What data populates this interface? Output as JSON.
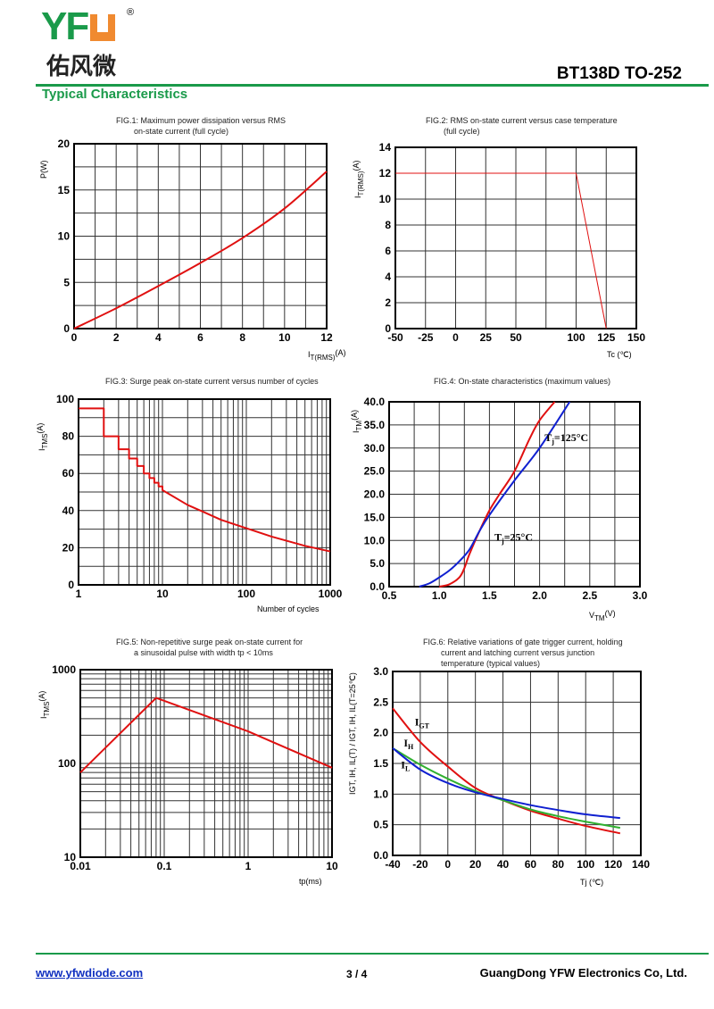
{
  "header": {
    "logo_text": "YFW",
    "logo_cn": "佑风微",
    "logo_mark": "®",
    "part_number": "BT138D TO-252",
    "section_title": "Typical Characteristics"
  },
  "colors": {
    "brand_green": "#1a9a4a",
    "brand_orange": "#f08a30",
    "red": "#e01010",
    "blue": "#1020d0",
    "green": "#30b030"
  },
  "footer": {
    "url": "www.yfwdiode.com",
    "page": "3 / 4",
    "company": "GuangDong YFW Electronics Co, Ltd."
  },
  "chart_data": [
    {
      "id": "fig1",
      "type": "line",
      "title": "FIG.1: Maximum power dissipation versus RMS\n        on-state current (full cycle)",
      "xlabel": {
        "main": "I",
        "sub": "T(RMS)",
        "unit": "(A)"
      },
      "ylabel": {
        "main": "P(W)",
        "sub": "",
        "unit": ""
      },
      "xscale": "linear",
      "yscale": "linear",
      "xlim": [
        0,
        12
      ],
      "ylim": [
        0,
        20
      ],
      "xticks": [
        0,
        2,
        4,
        6,
        8,
        10,
        12
      ],
      "yticks": [
        0,
        5,
        10,
        15,
        20
      ],
      "xgrid": [
        1,
        2,
        3,
        4,
        5,
        6,
        7,
        8,
        9,
        10,
        11
      ],
      "ygrid": [
        2.5,
        5,
        7.5,
        10,
        12.5,
        15,
        17.5
      ],
      "grid": true,
      "series": [
        {
          "color": "#e01010",
          "width": 2,
          "x": [
            0,
            2,
            4,
            6,
            8,
            10,
            12
          ],
          "y": [
            0,
            2.2,
            4.6,
            7.1,
            9.8,
            13,
            17
          ]
        }
      ]
    },
    {
      "id": "fig2",
      "type": "line",
      "title": "FIG.2: RMS on-state current versus case temperature\n        (full cycle)",
      "xlabel": {
        "main": "Tc (",
        "sub": "",
        "unit": "℃)"
      },
      "ylabel": {
        "main": "I",
        "sub": "T(RMS)",
        "unit": "(A)"
      },
      "xscale": "linear",
      "yscale": "linear",
      "xlim": [
        -50,
        150
      ],
      "ylim": [
        0,
        14
      ],
      "xticks": [
        -50,
        -25,
        0,
        25,
        50,
        100,
        125,
        150
      ],
      "yticks": [
        0,
        2,
        4,
        6,
        8,
        10,
        12,
        14
      ],
      "xgrid": [
        -25,
        0,
        25,
        50,
        75,
        100,
        125
      ],
      "ygrid": [
        2,
        4,
        6,
        8,
        10,
        12
      ],
      "grid": true,
      "series": [
        {
          "color": "#e01010",
          "width": 1,
          "x": [
            -50,
            100,
            125
          ],
          "y": [
            12,
            12,
            0
          ]
        }
      ]
    },
    {
      "id": "fig3",
      "type": "line",
      "title": "FIG.3: Surge peak on-state current versus number of cycles",
      "xlabel": {
        "main": "Number of cycles",
        "sub": "",
        "unit": ""
      },
      "ylabel": {
        "main": "I",
        "sub": "TMS",
        "unit": "(A)"
      },
      "xscale": "log",
      "yscale": "linear",
      "xlim": [
        1,
        1000
      ],
      "ylim": [
        0,
        100
      ],
      "xticks": [
        1,
        10,
        100,
        1000
      ],
      "yticks": [
        0,
        20,
        40,
        60,
        80,
        100
      ],
      "ygrid": [
        10,
        20,
        30,
        40,
        50,
        60,
        70,
        80,
        90
      ],
      "grid": true,
      "series": [
        {
          "color": "#e01010",
          "width": 2,
          "x": [
            1,
            2,
            2,
            3,
            3,
            4,
            4,
            5,
            5,
            6,
            6,
            7,
            7,
            8,
            8,
            9,
            9,
            10,
            10,
            20,
            30,
            50,
            100,
            200,
            500,
            1000
          ],
          "y": [
            95,
            95,
            80,
            80,
            73,
            73,
            68,
            68,
            64,
            64,
            60,
            60,
            57.5,
            57.5,
            55,
            55,
            53,
            53,
            51,
            43,
            39.5,
            35,
            30.5,
            26,
            21,
            18
          ]
        }
      ]
    },
    {
      "id": "fig4",
      "type": "line",
      "title": "FIG.4: On-state characteristics (maximum values)",
      "xlabel": {
        "main": "V",
        "sub": "TM",
        "unit": "(V)"
      },
      "ylabel": {
        "main": "I",
        "sub": "TM",
        "unit": "(A)"
      },
      "xscale": "linear",
      "yscale": "linear",
      "xlim": [
        0.5,
        3.0
      ],
      "ylim": [
        0,
        40
      ],
      "xticks": [
        0.5,
        1.0,
        1.5,
        2.0,
        2.5,
        3.0
      ],
      "yticks": [
        0,
        5,
        10,
        15,
        20,
        25,
        30,
        35,
        40
      ],
      "xgrid": [
        0.75,
        1.0,
        1.25,
        1.5,
        1.75,
        2.0,
        2.25,
        2.5,
        2.75
      ],
      "ygrid": [
        5,
        10,
        15,
        20,
        25,
        30,
        35
      ],
      "tick_decimals": 1,
      "grid": true,
      "series": [
        {
          "name": "Tj=25°C",
          "label_main": "T",
          "label_sub": "j",
          "label_rest": "=25°C",
          "label_at": [
            1.55,
            10
          ],
          "color": "#e01010",
          "width": 2,
          "x": [
            1.0,
            1.1,
            1.2,
            1.25,
            1.3,
            1.4,
            1.5,
            1.6,
            1.75,
            1.9,
            2.0,
            2.15
          ],
          "y": [
            0,
            0.5,
            2,
            4,
            7,
            12,
            16.5,
            20,
            25,
            32,
            36,
            40
          ]
        },
        {
          "name": "Tj=125°C",
          "label_main": "T",
          "label_sub": "j",
          "label_rest": "=125°C",
          "label_at": [
            2.05,
            31.5
          ],
          "color": "#1020d0",
          "width": 2,
          "x": [
            0.8,
            0.9,
            1.0,
            1.1,
            1.2,
            1.3,
            1.4,
            1.5,
            1.75,
            2.0,
            2.3
          ],
          "y": [
            0,
            0.7,
            2,
            3.5,
            5.5,
            8,
            12,
            15.5,
            23,
            30,
            40
          ]
        }
      ]
    },
    {
      "id": "fig5",
      "type": "line",
      "title": "FIG.5: Non-repetitive surge peak on-state current for\n        a sinusoidal pulse with width tp < 10ms",
      "xlabel": {
        "main": "tp(ms)",
        "sub": "",
        "unit": ""
      },
      "ylabel": {
        "main": "I",
        "sub": "TMS",
        "unit": "(A)"
      },
      "xscale": "log",
      "yscale": "log",
      "xlim": [
        0.01,
        10
      ],
      "ylim": [
        10,
        1000
      ],
      "xticks": [
        0.01,
        0.1,
        1,
        10
      ],
      "yticks": [
        10,
        100,
        1000
      ],
      "grid": true,
      "series": [
        {
          "color": "#e01010",
          "width": 2,
          "x": [
            0.01,
            0.08,
            1,
            10
          ],
          "y": [
            80,
            500,
            220,
            90
          ]
        }
      ]
    },
    {
      "id": "fig6",
      "type": "line",
      "title": "FIG.6: Relative variations of gate trigger current, holding\n        current and latching current versus junction\n        temperature (typical values)",
      "xlabel": {
        "main": "Tj (",
        "sub": "",
        "unit": "℃)"
      },
      "ylabel": {
        "main": "IGT, IH, IL(T) / IGT, IH, IL(T=25℃)",
        "sub": "",
        "unit": ""
      },
      "xscale": "linear",
      "yscale": "linear",
      "xlim": [
        -40,
        140
      ],
      "ylim": [
        0,
        3.0
      ],
      "xticks": [
        -40,
        -20,
        0,
        20,
        40,
        60,
        80,
        100,
        120,
        140
      ],
      "yticks": [
        0,
        0.5,
        1.0,
        1.5,
        2.0,
        2.5,
        3.0
      ],
      "xgrid": [
        -20,
        0,
        20,
        40,
        60,
        80,
        100,
        120
      ],
      "ygrid": [
        0.5,
        1.0,
        1.5,
        2.0,
        2.5
      ],
      "tick_decimals_y": 1,
      "grid": true,
      "series": [
        {
          "name": "IGT",
          "label_main": "I",
          "label_sub": "GT",
          "label_rest": "",
          "label_at": [
            -24,
            2.12
          ],
          "color": "#e01010",
          "width": 2,
          "x": [
            -40,
            -20,
            0,
            20,
            40,
            60,
            80,
            100,
            125
          ],
          "y": [
            2.4,
            1.85,
            1.45,
            1.1,
            0.9,
            0.73,
            0.6,
            0.48,
            0.36
          ]
        },
        {
          "name": "IH",
          "label_main": "I",
          "label_sub": "H",
          "label_rest": "",
          "label_at": [
            -32,
            1.78
          ],
          "color": "#30b030",
          "width": 2,
          "x": [
            -40,
            -20,
            0,
            20,
            40,
            60,
            80,
            100,
            125
          ],
          "y": [
            1.75,
            1.48,
            1.25,
            1.05,
            0.9,
            0.75,
            0.64,
            0.55,
            0.45
          ]
        },
        {
          "name": "IL",
          "label_main": "I",
          "label_sub": "L",
          "label_rest": "",
          "label_at": [
            -34,
            1.42
          ],
          "color": "#1020d0",
          "width": 2,
          "x": [
            -40,
            -20,
            0,
            20,
            40,
            60,
            80,
            100,
            125
          ],
          "y": [
            1.75,
            1.4,
            1.18,
            1.03,
            0.92,
            0.82,
            0.74,
            0.67,
            0.61
          ]
        }
      ]
    }
  ]
}
